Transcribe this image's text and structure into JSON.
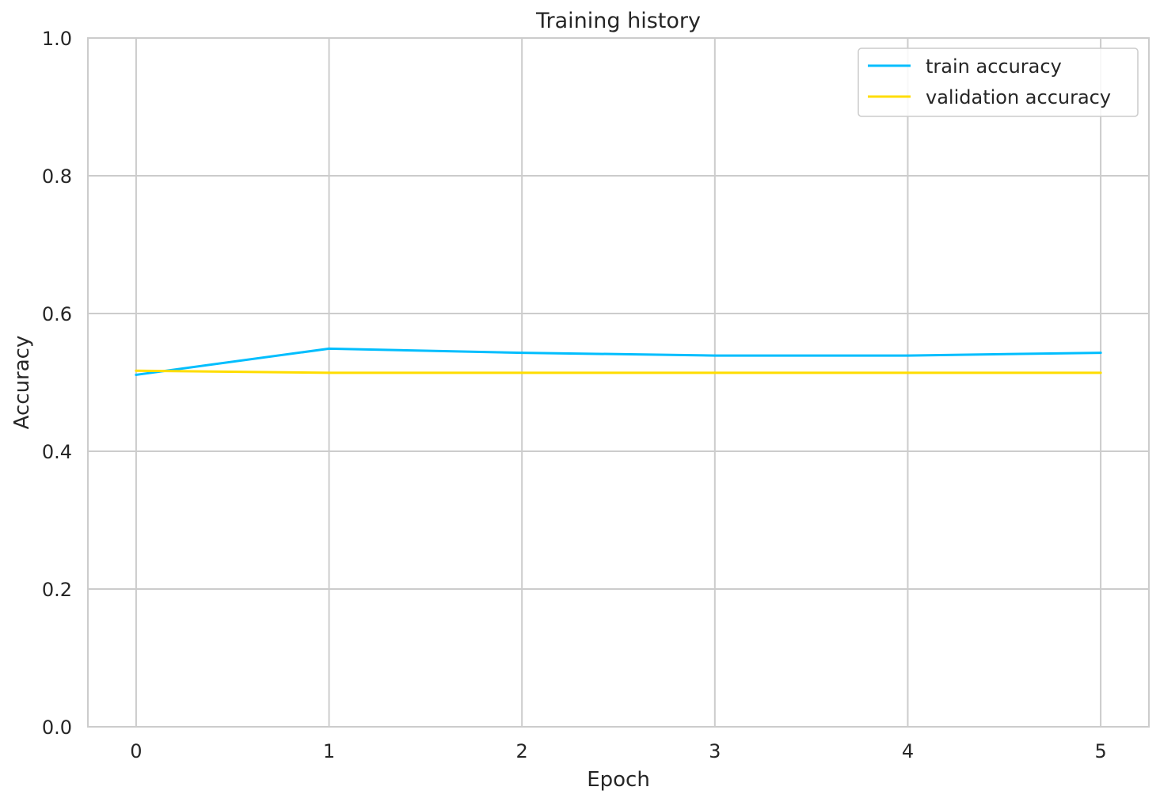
{
  "chart_data": {
    "type": "line",
    "title": "Training history",
    "xlabel": "Epoch",
    "ylabel": "Accuracy",
    "x": [
      0,
      1,
      2,
      3,
      4,
      5
    ],
    "xlim": [
      -0.25,
      5.25
    ],
    "ylim": [
      0.0,
      1.0
    ],
    "x_ticks": [
      "0",
      "1",
      "2",
      "3",
      "4",
      "5"
    ],
    "y_ticks": [
      "0.0",
      "0.2",
      "0.4",
      "0.6",
      "0.8",
      "1.0"
    ],
    "grid": true,
    "legend_position": "top-right",
    "series": [
      {
        "name": "train accuracy",
        "color": "#01BEFE",
        "values": [
          0.511,
          0.549,
          0.543,
          0.539,
          0.539,
          0.543
        ]
      },
      {
        "name": "validation accuracy",
        "color": "#FFDD00",
        "values": [
          0.517,
          0.514,
          0.514,
          0.514,
          0.514,
          0.514
        ]
      }
    ]
  }
}
